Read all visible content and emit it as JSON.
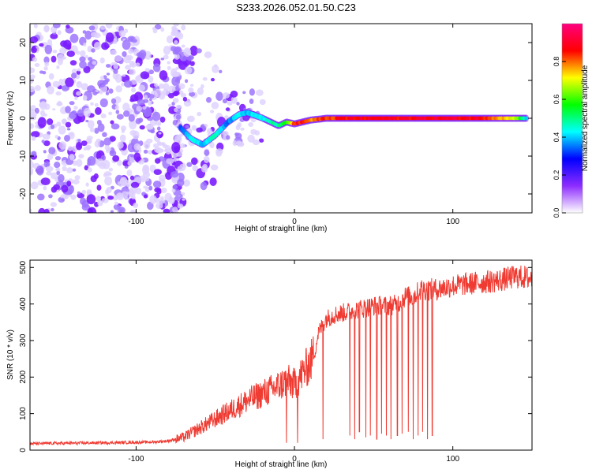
{
  "title": "S233.2026.052.01.50.C23",
  "colors": {
    "snr_line": "#ef3b32",
    "frame": "#000000",
    "scatter_low": "#ddd0ff",
    "scatter_mid": "#9e74ff",
    "scatter_high": "#7a1cff"
  },
  "chart_data": [
    {
      "type": "heatmap",
      "title": "",
      "xlabel": "Height of straight line (km)",
      "ylabel": "Frequency (Hz)",
      "xlim": [
        -167,
        150
      ],
      "ylim": [
        -25,
        25
      ],
      "x_ticks": [
        -100,
        0,
        100
      ],
      "y_ticks": [
        -20,
        -10,
        0,
        10,
        20
      ],
      "colorbar": {
        "label": "Normalized spectral amplitude",
        "range": [
          0,
          1
        ],
        "ticks": [
          0.0,
          0.2,
          0.4,
          0.6,
          0.8
        ],
        "colors": [
          "#ffffff",
          "#8d2cff",
          "#0000ff",
          "#00ffff",
          "#00ff00",
          "#ffff00",
          "#ff0000",
          "#ff0080"
        ]
      },
      "ridge": {
        "x": [
          -72,
          -65,
          -58,
          -50,
          -42,
          -35,
          -30,
          -25,
          -20,
          -15,
          -10,
          -5,
          0,
          5,
          10,
          20,
          40,
          60,
          80,
          100,
          120,
          140,
          147
        ],
        "y": [
          -2.5,
          -5.5,
          -7.0,
          -4.5,
          -1.0,
          1.0,
          1.5,
          0.8,
          0.0,
          -1.0,
          -2.0,
          -1.0,
          -1.5,
          -1.0,
          -0.5,
          0.0,
          0.0,
          0.0,
          0.0,
          0.0,
          0.0,
          0.0,
          0.0
        ],
        "amplitude": [
          0.35,
          0.45,
          0.4,
          0.5,
          0.35,
          0.45,
          0.4,
          0.45,
          0.45,
          0.5,
          0.5,
          0.6,
          0.85,
          0.9,
          0.8,
          0.85,
          0.9,
          0.9,
          0.92,
          0.92,
          0.9,
          0.7,
          0.4
        ]
      },
      "noise_region_x": [
        -167,
        -70
      ]
    },
    {
      "type": "line",
      "title": "",
      "xlabel": "Height of straight line (km)",
      "ylabel": "SNR (10 * v/v)",
      "xlim": [
        -167,
        150
      ],
      "ylim": [
        0,
        520
      ],
      "x_ticks": [
        -100,
        0,
        100
      ],
      "y_ticks": [
        0,
        100,
        200,
        300,
        400,
        500
      ],
      "series": [
        {
          "name": "SNR",
          "envelope_x": [
            -167,
            -120,
            -90,
            -80,
            -70,
            -60,
            -50,
            -40,
            -30,
            -20,
            -10,
            -5,
            0,
            5,
            10,
            13,
            15,
            20,
            25,
            30,
            40,
            50,
            60,
            65,
            70,
            75,
            80,
            85,
            90,
            100,
            110,
            120,
            130,
            140,
            150
          ],
          "envelope_y": [
            18,
            20,
            22,
            25,
            35,
            60,
            85,
            110,
            135,
            155,
            175,
            190,
            180,
            210,
            240,
            270,
            320,
            360,
            370,
            375,
            385,
            395,
            395,
            400,
            420,
            420,
            440,
            440,
            440,
            450,
            455,
            460,
            465,
            475,
            470
          ],
          "dropouts_x": [
            -5,
            2,
            18,
            35,
            38,
            41,
            45,
            48,
            52,
            55,
            58,
            61,
            65,
            68,
            72,
            75,
            78,
            81,
            84,
            87
          ],
          "dropouts_y": [
            20,
            20,
            30,
            40,
            30,
            50,
            35,
            40,
            30,
            45,
            40,
            30,
            40,
            45,
            50,
            30,
            40,
            50,
            30,
            40
          ]
        }
      ]
    }
  ]
}
